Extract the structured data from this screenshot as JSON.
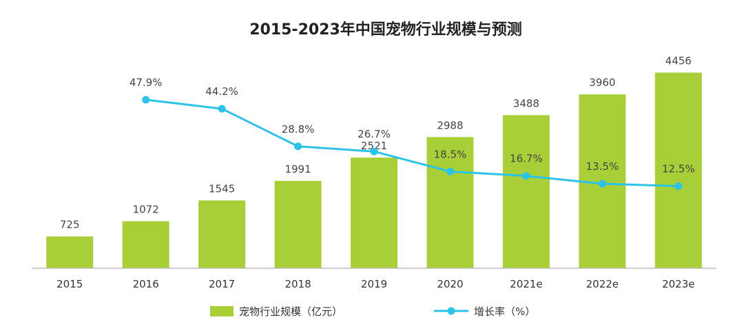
{
  "chart_data": {
    "type": "bar",
    "title": "2015-2023年中国宠物行业规模与预测",
    "categories": [
      "2015",
      "2016",
      "2017",
      "2018",
      "2019",
      "2020",
      "2021e",
      "2022e",
      "2023e"
    ],
    "series": [
      {
        "name": "宠物行业规模（亿元）",
        "type": "bar",
        "values": [
          725,
          1072,
          1545,
          1991,
          2521,
          2988,
          3488,
          3960,
          4456
        ],
        "labels": [
          "725",
          "1072",
          "1545",
          "1991",
          "2521",
          "2988",
          "3488",
          "3960",
          "4456"
        ]
      },
      {
        "name": "增长率（%）",
        "type": "line",
        "values": [
          null,
          47.9,
          44.2,
          28.8,
          26.7,
          18.5,
          16.7,
          13.5,
          12.5
        ],
        "labels": [
          "",
          "47.9%",
          "44.2%",
          "28.8%",
          "26.7%",
          "18.5%",
          "16.7%",
          "13.5%",
          "12.5%"
        ]
      }
    ],
    "xlabel": "",
    "ylabel": "",
    "ylim": [
      0,
      4700
    ],
    "y2lim": [
      0,
      80
    ],
    "grid": false,
    "legend_position": "bottom-center",
    "colors": {
      "bar": "#A9CF38",
      "line": "#2CC3E8",
      "axis": "#BFBFBF"
    }
  }
}
